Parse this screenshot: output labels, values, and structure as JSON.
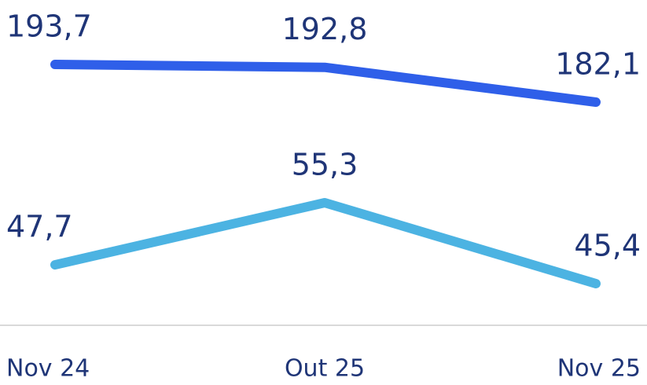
{
  "chart_data": {
    "type": "line",
    "categories": [
      "Nov 24",
      "Out 25",
      "Nov 25"
    ],
    "series": [
      {
        "color": "#2f5fe9",
        "values": [
          193.7,
          192.8,
          182.1
        ],
        "value_labels": [
          "193,7",
          "192,8",
          "182,1"
        ]
      },
      {
        "color": "#4cb3e2",
        "values": [
          47.7,
          55.3,
          45.4
        ],
        "value_labels": [
          "47,7",
          "55,3",
          "45,4"
        ]
      }
    ]
  }
}
